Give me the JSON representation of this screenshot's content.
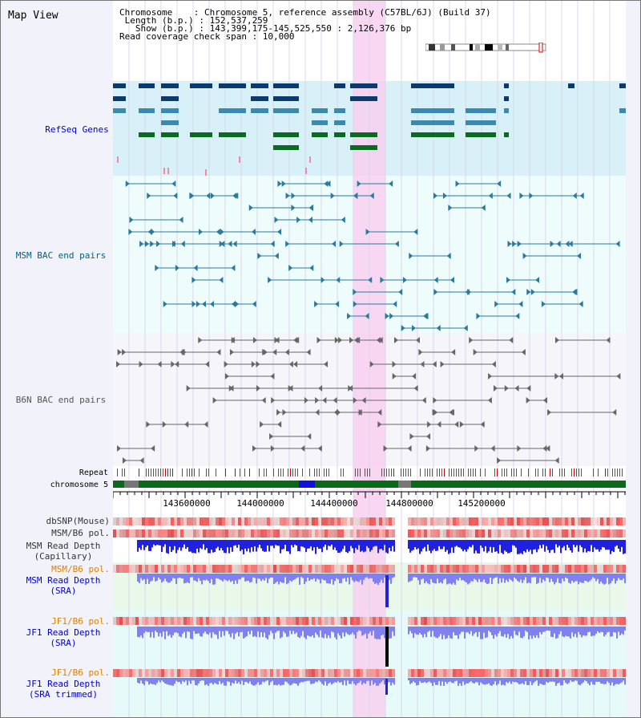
{
  "title": "Map View",
  "info": {
    "chromosome": "Chromosome    : Chromosome 5, reference assembly (C57BL/6J) (Build 37)",
    "length": " Length (b.p.) : 152,537,259",
    "show": "   Show (b.p.) : 143,399,175-145,525,550 : 2,126,376 bp",
    "coverage": "Read coverage check span : 10,000"
  },
  "tracks": {
    "refseq": "RefSeq Genes",
    "msm_bac": "MSM BAC end pairs",
    "b6n_bac": "B6N BAC end pairs",
    "repeat": "Repeat",
    "chromosome": "chromosome 5",
    "dbsnp": "dbSNP(Mouse)",
    "msm_b6_pol_1": "MSM/B6 pol.",
    "msm_depth_cap_1": "MSM Read Depth",
    "msm_depth_cap_2": "(Capillary)",
    "msm_b6_pol_2": "MSM/B6 pol.",
    "msm_depth_sra_1": "MSM Read Depth",
    "msm_depth_sra_2": "(SRA)",
    "jf1_b6_pol_1": "JF1/B6 pol.",
    "jf1_depth_sra_1": "JF1 Read Depth",
    "jf1_depth_sra_2": "(SRA)",
    "jf1_b6_pol_2": "JF1/B6 pol.",
    "jf1_depth_trim_1": "JF1 Read Depth",
    "jf1_depth_trim_2": "(SRA trimmed)"
  },
  "axis": {
    "ticks": [
      "143600000",
      "144000000",
      "144400000",
      "144800000",
      "145200000"
    ]
  },
  "colors": {
    "refseq_label": "#0000cc",
    "msm_bac_label": "#006080",
    "b6n_bac_label": "#555555",
    "orange_label": "#e08000",
    "blue_label": "#0000cc",
    "highlight": "#f8d0f0"
  }
}
